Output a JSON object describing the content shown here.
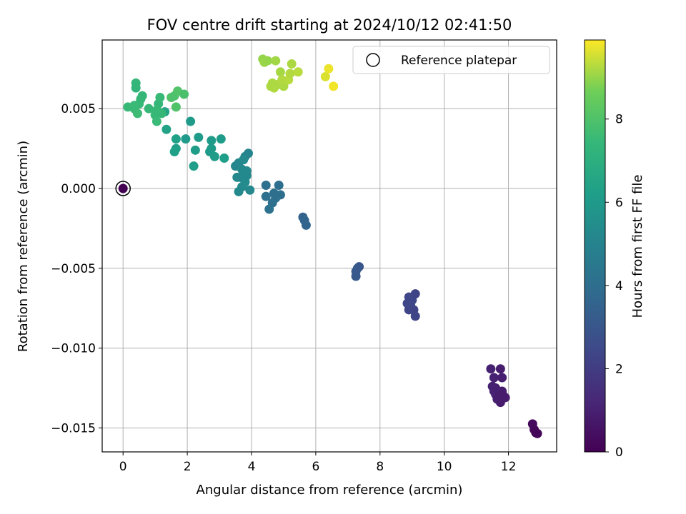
{
  "chart_data": {
    "type": "scatter",
    "title": "FOV centre drift starting at 2024/10/12 02:41:50",
    "xlabel": "Angular distance from reference (arcmin)",
    "ylabel": "Rotation from reference (arcmin)",
    "xlim": [
      -0.65,
      13.5
    ],
    "ylim": [
      -0.0165,
      0.0093
    ],
    "x_ticks": [
      0,
      2,
      4,
      6,
      8,
      10,
      12
    ],
    "x_tick_labels": [
      "0",
      "2",
      "4",
      "6",
      "8",
      "10",
      "12"
    ],
    "y_ticks": [
      0.005,
      0.0,
      -0.005,
      -0.01,
      -0.015
    ],
    "y_tick_labels": [
      "0.005",
      "0.000",
      "−0.005",
      "−0.010",
      "−0.015"
    ],
    "grid": true,
    "legend": {
      "placement": "top-right",
      "entries": [
        "Reference platepar"
      ]
    },
    "reference_point": {
      "x": 0.0,
      "y": 0.0,
      "color_value": 0.0
    },
    "colorbar": {
      "label": "Hours from first FF file",
      "colormap": "viridis",
      "range": [
        0,
        9.9
      ],
      "ticks": [
        0,
        2,
        4,
        6,
        8
      ],
      "tick_labels": [
        "0",
        "2",
        "4",
        "6",
        "8"
      ]
    },
    "points": [
      [
        12.75,
        -0.01475,
        0.3
      ],
      [
        12.8,
        -0.0151,
        0.25
      ],
      [
        12.85,
        -0.0153,
        0.2
      ],
      [
        12.9,
        -0.01535,
        0.15
      ],
      [
        11.45,
        -0.0113,
        1.0
      ],
      [
        11.75,
        -0.0113,
        0.9
      ],
      [
        11.8,
        -0.01185,
        0.95
      ],
      [
        11.55,
        -0.01185,
        1.0
      ],
      [
        11.5,
        -0.0124,
        1.0
      ],
      [
        11.55,
        -0.0127,
        1.05
      ],
      [
        11.6,
        -0.0129,
        1.1
      ],
      [
        11.7,
        -0.0128,
        0.95
      ],
      [
        11.8,
        -0.0127,
        0.9
      ],
      [
        11.85,
        -0.013,
        0.85
      ],
      [
        11.75,
        -0.0134,
        0.8
      ],
      [
        11.65,
        -0.0132,
        0.9
      ],
      [
        11.6,
        -0.0125,
        1.0
      ],
      [
        11.9,
        -0.0131,
        0.85
      ],
      [
        9.1,
        -0.0066,
        2.3
      ],
      [
        9.0,
        -0.007,
        2.35
      ],
      [
        8.9,
        -0.0068,
        2.4
      ],
      [
        8.85,
        -0.0072,
        2.35
      ],
      [
        8.9,
        -0.0076,
        2.3
      ],
      [
        9.05,
        -0.0076,
        2.25
      ],
      [
        9.1,
        -0.008,
        2.3
      ],
      [
        8.95,
        -0.0073,
        2.4
      ],
      [
        7.35,
        -0.0049,
        3.0
      ],
      [
        7.3,
        -0.005,
        3.05
      ],
      [
        7.25,
        -0.0052,
        3.1
      ],
      [
        7.25,
        -0.0055,
        3.1
      ],
      [
        5.6,
        -0.0018,
        3.5
      ],
      [
        5.65,
        -0.002,
        3.55
      ],
      [
        5.7,
        -0.0023,
        3.6
      ],
      [
        4.45,
        0.0002,
        4.1
      ],
      [
        4.85,
        0.0002,
        4.0
      ],
      [
        4.9,
        -0.0004,
        4.05
      ],
      [
        4.75,
        -0.0006,
        4.1
      ],
      [
        4.65,
        -0.0009,
        4.15
      ],
      [
        4.55,
        -0.0013,
        4.2
      ],
      [
        4.45,
        -0.0005,
        4.1
      ],
      [
        4.7,
        -0.0003,
        4.05
      ],
      [
        3.5,
        0.0014,
        5.1
      ],
      [
        3.6,
        0.0016,
        5.15
      ],
      [
        3.7,
        0.0012,
        5.2
      ],
      [
        3.8,
        0.002,
        5.1
      ],
      [
        3.9,
        0.0022,
        5.05
      ],
      [
        3.75,
        0.0018,
        5.3
      ],
      [
        3.85,
        0.0011,
        5.25
      ],
      [
        3.65,
        0.0007,
        5.3
      ],
      [
        3.8,
        0.0004,
        5.35
      ],
      [
        3.7,
        0.0001,
        5.3
      ],
      [
        3.6,
        -0.0002,
        5.25
      ],
      [
        3.95,
        -0.0001,
        5.2
      ],
      [
        3.55,
        0.0007,
        5.2
      ],
      [
        3.85,
        0.0008,
        5.25
      ],
      [
        1.95,
        0.0031,
        6.0
      ],
      [
        2.1,
        0.0042,
        6.05
      ],
      [
        2.35,
        0.0032,
        6.1
      ],
      [
        2.25,
        0.0024,
        6.15
      ],
      [
        2.7,
        0.0023,
        6.0
      ],
      [
        2.75,
        0.003,
        6.05
      ],
      [
        3.05,
        0.0031,
        6.1
      ],
      [
        3.15,
        0.0019,
        6.2
      ],
      [
        2.85,
        0.002,
        6.15
      ],
      [
        2.2,
        0.0014,
        6.2
      ],
      [
        1.65,
        0.0031,
        6.3
      ],
      [
        1.65,
        0.0025,
        6.25
      ],
      [
        1.6,
        0.0023,
        6.3
      ],
      [
        1.35,
        0.0037,
        6.4
      ],
      [
        1.3,
        0.0048,
        6.5
      ],
      [
        2.75,
        0.0025,
        6.1
      ],
      [
        0.15,
        0.0051,
        7.5
      ],
      [
        0.35,
        0.005,
        7.55
      ],
      [
        0.45,
        0.0047,
        7.6
      ],
      [
        0.5,
        0.0053,
        7.5
      ],
      [
        0.6,
        0.0058,
        7.4
      ],
      [
        0.55,
        0.0056,
        7.45
      ],
      [
        0.4,
        0.0063,
        7.3
      ],
      [
        0.4,
        0.0066,
        7.35
      ],
      [
        0.8,
        0.005,
        7.45
      ],
      [
        1.0,
        0.0046,
        7.5
      ],
      [
        1.05,
        0.0042,
        7.55
      ],
      [
        1.1,
        0.0053,
        7.4
      ],
      [
        1.15,
        0.0057,
        7.5
      ],
      [
        1.2,
        0.0047,
        7.45
      ],
      [
        1.05,
        0.0049,
        7.5
      ],
      [
        0.35,
        0.0052,
        7.55
      ],
      [
        1.5,
        0.0057,
        8.0
      ],
      [
        1.6,
        0.0058,
        7.95
      ],
      [
        1.7,
        0.0061,
        8.05
      ],
      [
        1.9,
        0.0059,
        7.9
      ],
      [
        1.65,
        0.0051,
        8.0
      ],
      [
        4.35,
        0.0081,
        9.0
      ],
      [
        4.4,
        0.0079,
        9.05
      ],
      [
        4.5,
        0.008,
        9.0
      ],
      [
        4.75,
        0.008,
        9.1
      ],
      [
        4.65,
        0.0066,
        9.2
      ],
      [
        4.7,
        0.0063,
        9.25
      ],
      [
        4.8,
        0.0065,
        9.2
      ],
      [
        4.9,
        0.0073,
        9.15
      ],
      [
        5.0,
        0.0064,
        9.2
      ],
      [
        5.15,
        0.0068,
        9.3
      ],
      [
        5.2,
        0.0072,
        9.25
      ],
      [
        5.25,
        0.0078,
        9.2
      ],
      [
        5.45,
        0.0073,
        9.3
      ],
      [
        4.95,
        0.0068,
        9.25
      ],
      [
        4.6,
        0.0064,
        9.2
      ],
      [
        6.3,
        0.007,
        9.6
      ],
      [
        6.4,
        0.0075,
        9.75
      ],
      [
        6.55,
        0.0064,
        9.8
      ]
    ]
  }
}
